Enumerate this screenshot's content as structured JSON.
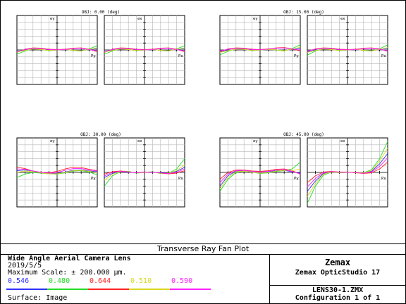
{
  "plot_title": "Transverse Ray Fan Plot",
  "lens": {
    "name": "Wide Angle Aerial Camera Lens",
    "date": "2019/5/5",
    "max_scale": "Maximum Scale: ± 200.000 µm.",
    "surface": "Surface: Image"
  },
  "wavelengths": [
    {
      "label": "0.546",
      "color": "#3030ff"
    },
    {
      "label": "0.480",
      "color": "#22dd22"
    },
    {
      "label": "0.644",
      "color": "#ff2020"
    },
    {
      "label": "0.510",
      "color": "#d8d820"
    },
    {
      "label": "0.590",
      "color": "#ff20ff"
    }
  ],
  "brand": {
    "company": "Zemax",
    "product": "Zemax OpticStudio 17",
    "file": "LENS30-1.ZMX",
    "config": "Configuration 1 of 1"
  },
  "chart_data": {
    "type": "line",
    "title": "Transverse Ray Fan Plot",
    "max_scale_um": 200,
    "ylim": [
      -200,
      200
    ],
    "xlim": [
      -1,
      1
    ],
    "grid": true,
    "x": [
      -1,
      -0.8,
      -0.6,
      -0.4,
      -0.2,
      0,
      0.2,
      0.4,
      0.6,
      0.8,
      1
    ],
    "fields": [
      {
        "label": "OBJ: 0.00 (deg)",
        "tangential": {
          "axis_x": "Py",
          "axis_y": "ey",
          "series": [
            {
              "wavelength": "0.546",
              "values": [
                -8,
                -2,
                4,
                2,
                -3,
                0,
                3,
                -2,
                -4,
                2,
                8
              ]
            },
            {
              "wavelength": "0.480",
              "values": [
                -25,
                -6,
                6,
                3,
                -4,
                0,
                4,
                -3,
                -6,
                6,
                25
              ]
            },
            {
              "wavelength": "0.644",
              "values": [
                -14,
                4,
                12,
                10,
                4,
                2,
                4,
                10,
                12,
                4,
                -10
              ]
            },
            {
              "wavelength": "0.510",
              "values": [
                -12,
                -3,
                5,
                2,
                -3,
                0,
                3,
                -2,
                -5,
                3,
                12
              ]
            },
            {
              "wavelength": "0.590",
              "values": [
                -10,
                2,
                10,
                8,
                2,
                1,
                2,
                8,
                10,
                2,
                -6
              ]
            }
          ]
        },
        "sagittal": {
          "axis_x": "Px",
          "axis_y": "ex",
          "series": [
            {
              "wavelength": "0.546",
              "values": [
                -8,
                -2,
                4,
                2,
                -3,
                0,
                3,
                -2,
                -4,
                2,
                8
              ]
            },
            {
              "wavelength": "0.480",
              "values": [
                -25,
                -6,
                6,
                3,
                -4,
                0,
                4,
                -3,
                -6,
                6,
                25
              ]
            },
            {
              "wavelength": "0.644",
              "values": [
                -14,
                4,
                12,
                10,
                4,
                2,
                4,
                10,
                12,
                4,
                -10
              ]
            },
            {
              "wavelength": "0.510",
              "values": [
                -12,
                -3,
                5,
                2,
                -3,
                0,
                3,
                -2,
                -5,
                3,
                12
              ]
            },
            {
              "wavelength": "0.590",
              "values": [
                -10,
                2,
                10,
                8,
                2,
                1,
                2,
                8,
                10,
                2,
                -6
              ]
            }
          ]
        }
      },
      {
        "label": "OBJ: 15.00 (deg)",
        "tangential": {
          "axis_x": "Py",
          "axis_y": "ey",
          "series": [
            {
              "wavelength": "0.546",
              "values": [
                -10,
                -2,
                3,
                2,
                -2,
                0,
                3,
                1,
                -3,
                2,
                12
              ]
            },
            {
              "wavelength": "0.480",
              "values": [
                -28,
                -8,
                6,
                4,
                -4,
                0,
                4,
                0,
                -6,
                8,
                30
              ]
            },
            {
              "wavelength": "0.644",
              "values": [
                -10,
                6,
                12,
                10,
                4,
                2,
                6,
                12,
                14,
                6,
                -6
              ]
            },
            {
              "wavelength": "0.510",
              "values": [
                -14,
                -4,
                4,
                3,
                -3,
                0,
                3,
                1,
                -4,
                4,
                16
              ]
            },
            {
              "wavelength": "0.590",
              "values": [
                -6,
                4,
                10,
                8,
                2,
                1,
                5,
                10,
                12,
                5,
                0
              ]
            }
          ]
        },
        "sagittal": {
          "axis_x": "Px",
          "axis_y": "ex",
          "series": [
            {
              "wavelength": "0.546",
              "values": [
                -10,
                -2,
                4,
                2,
                -2,
                0,
                2,
                -2,
                -4,
                2,
                10
              ]
            },
            {
              "wavelength": "0.480",
              "values": [
                -30,
                -6,
                6,
                3,
                -4,
                0,
                4,
                -3,
                -6,
                6,
                30
              ]
            },
            {
              "wavelength": "0.644",
              "values": [
                -8,
                6,
                12,
                10,
                4,
                2,
                4,
                10,
                12,
                6,
                -8
              ]
            },
            {
              "wavelength": "0.510",
              "values": [
                -14,
                -3,
                5,
                2,
                -3,
                0,
                3,
                -2,
                -5,
                3,
                14
              ]
            },
            {
              "wavelength": "0.590",
              "values": [
                -6,
                4,
                10,
                8,
                2,
                1,
                2,
                8,
                10,
                4,
                -6
              ]
            }
          ]
        }
      },
      {
        "label": "OBJ: 30.00 (deg)",
        "tangential": {
          "axis_x": "Py",
          "axis_y": "ey",
          "series": [
            {
              "wavelength": "0.546",
              "values": [
                10,
                14,
                8,
                0,
                -6,
                -6,
                2,
                12,
                14,
                8,
                4
              ]
            },
            {
              "wavelength": "0.480",
              "values": [
                -30,
                -10,
                0,
                -4,
                -8,
                -10,
                -2,
                8,
                10,
                2,
                -14
              ]
            },
            {
              "wavelength": "0.644",
              "values": [
                30,
                22,
                8,
                0,
                -2,
                6,
                20,
                30,
                28,
                18,
                10
              ]
            },
            {
              "wavelength": "0.510",
              "values": [
                0,
                8,
                6,
                -2,
                -8,
                -8,
                0,
                10,
                12,
                6,
                0
              ]
            },
            {
              "wavelength": "0.590",
              "values": [
                20,
                18,
                8,
                0,
                -4,
                0,
                12,
                22,
                22,
                14,
                8
              ]
            }
          ]
        },
        "sagittal": {
          "axis_x": "Px",
          "axis_y": "ex",
          "series": [
            {
              "wavelength": "0.546",
              "values": [
                -30,
                -6,
                4,
                2,
                -2,
                0,
                2,
                -2,
                -4,
                6,
                30
              ]
            },
            {
              "wavelength": "0.480",
              "values": [
                -80,
                -20,
                4,
                6,
                -4,
                0,
                4,
                -6,
                -4,
                20,
                80
              ]
            },
            {
              "wavelength": "0.644",
              "values": [
                -10,
                4,
                8,
                4,
                -2,
                2,
                2,
                -4,
                -8,
                -4,
                10
              ]
            },
            {
              "wavelength": "0.510",
              "values": [
                -45,
                -10,
                4,
                4,
                -3,
                0,
                3,
                -4,
                -4,
                10,
                45
              ]
            },
            {
              "wavelength": "0.590",
              "values": [
                -20,
                0,
                6,
                3,
                -2,
                1,
                2,
                -3,
                -6,
                0,
                20
              ]
            }
          ]
        }
      },
      {
        "label": "OBJ: 45.00 (deg)",
        "tangential": {
          "axis_x": "Py",
          "axis_y": "ey",
          "series": [
            {
              "wavelength": "0.546",
              "values": [
                -80,
                -20,
                8,
                10,
                4,
                0,
                4,
                10,
                12,
                4,
                -4
              ]
            },
            {
              "wavelength": "0.480",
              "values": [
                -110,
                -40,
                0,
                8,
                2,
                -6,
                -2,
                6,
                10,
                20,
                60
              ]
            },
            {
              "wavelength": "0.644",
              "values": [
                -40,
                0,
                14,
                14,
                8,
                6,
                10,
                18,
                20,
                10,
                -10
              ]
            },
            {
              "wavelength": "0.510",
              "values": [
                -95,
                -30,
                4,
                8,
                2,
                -4,
                0,
                8,
                12,
                10,
                20
              ]
            },
            {
              "wavelength": "0.590",
              "values": [
                -60,
                -10,
                10,
                12,
                6,
                2,
                6,
                14,
                16,
                6,
                -10
              ]
            }
          ]
        },
        "sagittal": {
          "axis_x": "Px",
          "axis_y": "ex",
          "series": [
            {
              "wavelength": "0.546",
              "values": [
                -110,
                -50,
                -6,
                4,
                0,
                0,
                0,
                -4,
                6,
                50,
                110
              ]
            },
            {
              "wavelength": "0.480",
              "values": [
                -180,
                -80,
                -16,
                2,
                -2,
                0,
                2,
                -2,
                16,
                80,
                180
              ]
            },
            {
              "wavelength": "0.644",
              "values": [
                -60,
                -20,
                2,
                6,
                2,
                2,
                -2,
                -6,
                -2,
                20,
                60
              ]
            },
            {
              "wavelength": "0.510",
              "values": [
                -140,
                -65,
                -10,
                3,
                -1,
                0,
                1,
                -3,
                10,
                65,
                140
              ]
            },
            {
              "wavelength": "0.590",
              "values": [
                -85,
                -35,
                -2,
                5,
                1,
                1,
                -1,
                -5,
                2,
                35,
                85
              ]
            }
          ]
        }
      }
    ]
  }
}
